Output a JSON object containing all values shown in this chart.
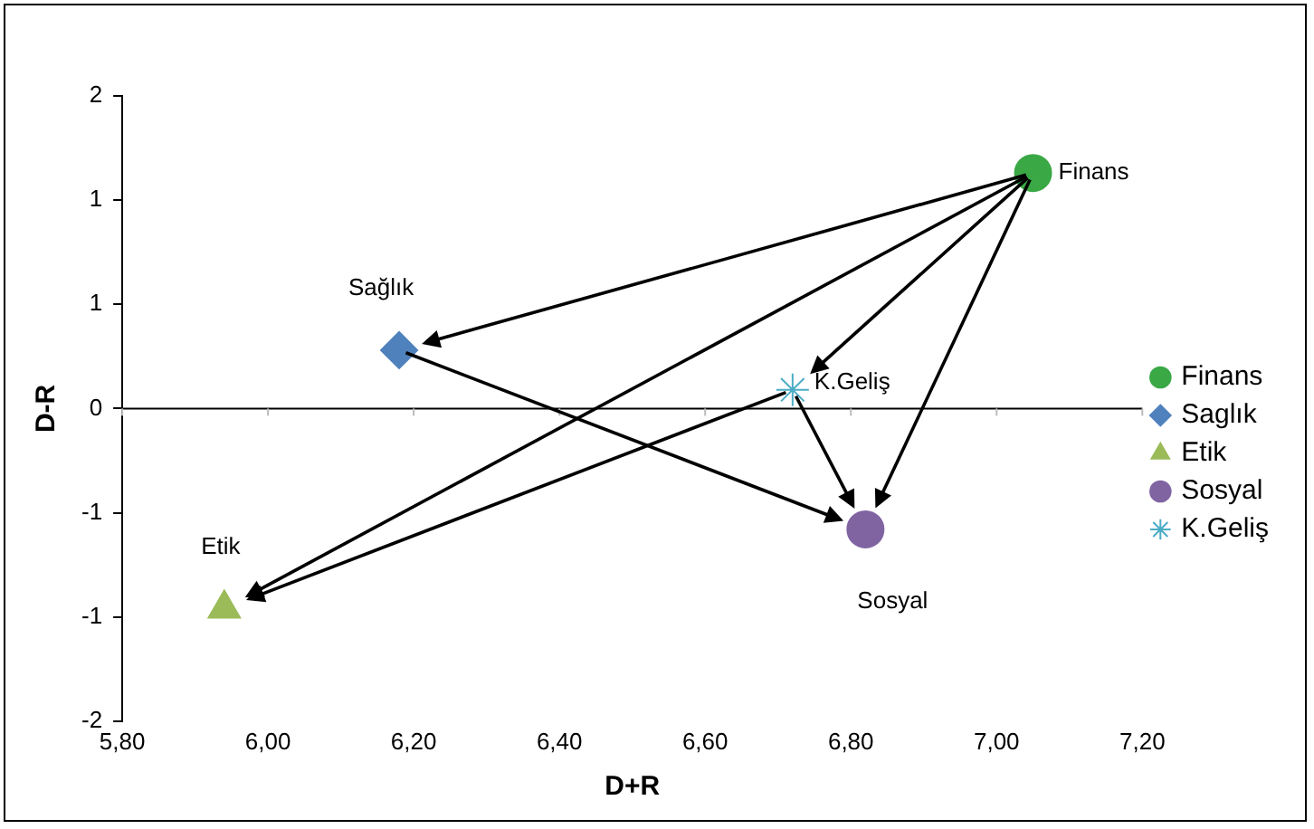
{
  "chart_data": {
    "type": "scatter",
    "xlabel": "D+R",
    "ylabel": "D-R",
    "xlim": [
      5.8,
      7.2
    ],
    "ylim": [
      -1.5,
      1.5
    ],
    "xticks": [
      {
        "value": 5.8,
        "label": "5,80"
      },
      {
        "value": 6,
        "label": "6,00"
      },
      {
        "value": 6.2,
        "label": "6,20"
      },
      {
        "value": 6.4,
        "label": "6,40"
      },
      {
        "value": 6.6,
        "label": "6,60"
      },
      {
        "value": 6.8,
        "label": "6,80"
      },
      {
        "value": 7,
        "label": "7,00"
      },
      {
        "value": 7.2,
        "label": "7,20"
      }
    ],
    "yticks": [
      {
        "value": -1.5,
        "label": "-2"
      },
      {
        "value": -1,
        "label": "-1"
      },
      {
        "value": -0.5,
        "label": "-1"
      },
      {
        "value": 0,
        "label": "0"
      },
      {
        "value": 0.5,
        "label": "1"
      },
      {
        "value": 1,
        "label": "1"
      },
      {
        "value": 1.5,
        "label": "2"
      }
    ],
    "grid": false,
    "legend": "right",
    "ref_lines": [
      {
        "axis": "y",
        "value": 0,
        "color": "#000000"
      }
    ],
    "series": [
      {
        "name": "Finans",
        "color": "#3aa845",
        "marker": "circle",
        "x": [
          7.05
        ],
        "values": [
          1.13
        ]
      },
      {
        "name": "Saglık",
        "color": "#4f81bd",
        "marker": "diamond",
        "x": [
          6.18
        ],
        "values": [
          0.28
        ]
      },
      {
        "name": "Etik",
        "color": "#9bbb59",
        "marker": "triangle",
        "x": [
          5.94
        ],
        "values": [
          -0.96
        ]
      },
      {
        "name": "Sosyal",
        "color": "#8064a2",
        "marker": "circle",
        "x": [
          6.82
        ],
        "values": [
          -0.58
        ]
      },
      {
        "name": "K.Geliş",
        "color": "#4bacc6",
        "marker": "cross",
        "x": [
          6.72
        ],
        "values": [
          0.09
        ]
      }
    ],
    "annotations": [
      {
        "text": "Finans",
        "x": 7.05,
        "y": 1.13
      },
      {
        "text": "Sağlık",
        "x": 6.18,
        "y": 0.28
      },
      {
        "text": "Etik",
        "x": 5.94,
        "y": -0.96
      },
      {
        "text": "Sosyal",
        "x": 6.82,
        "y": -0.58
      },
      {
        "text": "K.Geliş",
        "x": 6.72,
        "y": 0.09
      }
    ]
  }
}
